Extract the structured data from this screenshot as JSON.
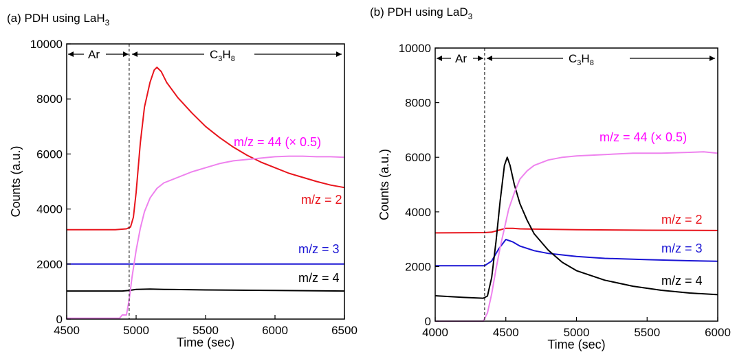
{
  "chart_data": [
    {
      "type": "line",
      "title": "(a) PDH using LaH",
      "title_sub": "3",
      "xlabel": "Time (sec)",
      "ylabel": "Counts (a.u.)",
      "xlim": [
        4500,
        6500
      ],
      "ylim": [
        0,
        10000
      ],
      "xticks": [
        4500,
        5000,
        5500,
        6000,
        6500
      ],
      "yticks": [
        0,
        2000,
        4000,
        6000,
        8000,
        10000
      ],
      "grid": false,
      "switch_x": 4950,
      "gas_labels": {
        "ar": "Ar",
        "c3h8_main": "C",
        "c3h8_sub1": "3",
        "c3h8_mid": "H",
        "c3h8_sub2": "8"
      },
      "series": [
        {
          "name": "m/z = 2",
          "color": "#e8141c",
          "x": [
            4500,
            4850,
            4930,
            4960,
            4980,
            5000,
            5030,
            5060,
            5100,
            5130,
            5150,
            5180,
            5220,
            5300,
            5400,
            5500,
            5600,
            5700,
            5800,
            5900,
            6000,
            6100,
            6200,
            6300,
            6400,
            6500
          ],
          "y": [
            3250,
            3250,
            3280,
            3350,
            3700,
            4600,
            6400,
            7700,
            8600,
            9050,
            9150,
            9000,
            8600,
            8050,
            7500,
            7000,
            6600,
            6250,
            5950,
            5700,
            5500,
            5300,
            5150,
            5000,
            4870,
            4780
          ]
        },
        {
          "name": "m/z = 3",
          "color": "#1a14d4",
          "x": [
            4500,
            6500
          ],
          "y": [
            2000,
            2000
          ]
        },
        {
          "name": "m/z = 4",
          "color": "#000000",
          "x": [
            4500,
            4900,
            4950,
            5000,
            5100,
            5200,
            5500,
            6000,
            6500
          ],
          "y": [
            1020,
            1020,
            1040,
            1080,
            1090,
            1080,
            1060,
            1040,
            1020
          ]
        },
        {
          "name": "m/z = 44 (×0.5)",
          "color": "#ee82ee",
          "x": [
            4500,
            4880,
            4900,
            4930,
            4950,
            4970,
            5000,
            5030,
            5060,
            5100,
            5150,
            5200,
            5300,
            5400,
            5500,
            5600,
            5700,
            5800,
            5900,
            6000,
            6100,
            6200,
            6300,
            6400,
            6500
          ],
          "y": [
            30,
            30,
            150,
            150,
            700,
            1500,
            2500,
            3300,
            3900,
            4400,
            4750,
            4950,
            5150,
            5350,
            5500,
            5650,
            5750,
            5800,
            5850,
            5900,
            5920,
            5920,
            5900,
            5900,
            5880
          ]
        }
      ],
      "series_labels": [
        {
          "text": "m/z = 44 (",
          "mult": "×",
          "suffix": " 0.5)",
          "color": "#ff00ff"
        },
        {
          "text": "m/z = 2",
          "color": "#e8141c"
        },
        {
          "text": "m/z = 3",
          "color": "#1a14d4"
        },
        {
          "text": "m/z = 4",
          "color": "#000000"
        }
      ]
    },
    {
      "type": "line",
      "title": "(b) PDH using LaD",
      "title_sub": "3",
      "xlabel": "Time (sec)",
      "ylabel": "Counts (a.u.)",
      "xlim": [
        4000,
        6000
      ],
      "ylim": [
        0,
        10000
      ],
      "xticks": [
        4000,
        4500,
        5000,
        5500,
        6000
      ],
      "yticks": [
        0,
        2000,
        4000,
        6000,
        8000,
        10000
      ],
      "grid": false,
      "switch_x": 4350,
      "gas_labels": {
        "ar": "Ar",
        "c3h8_main": "C",
        "c3h8_sub1": "3",
        "c3h8_mid": "H",
        "c3h8_sub2": "8"
      },
      "series": [
        {
          "name": "m/z = 2",
          "color": "#e8141c",
          "x": [
            4000,
            4350,
            4400,
            4450,
            4500,
            4550,
            4600,
            5000,
            5500,
            6000
          ],
          "y": [
            3230,
            3240,
            3260,
            3330,
            3400,
            3400,
            3380,
            3350,
            3330,
            3320
          ]
        },
        {
          "name": "m/z = 3",
          "color": "#1a14d4",
          "x": [
            4000,
            4350,
            4400,
            4450,
            4500,
            4550,
            4600,
            4700,
            4800,
            5000,
            5200,
            5500,
            5800,
            6000
          ],
          "y": [
            2030,
            2030,
            2200,
            2650,
            2990,
            2900,
            2750,
            2580,
            2480,
            2370,
            2300,
            2250,
            2210,
            2190
          ]
        },
        {
          "name": "m/z = 4",
          "color": "#000000",
          "x": [
            4000,
            4200,
            4340,
            4370,
            4400,
            4430,
            4460,
            4490,
            4510,
            4530,
            4560,
            4600,
            4650,
            4700,
            4800,
            4900,
            5000,
            5200,
            5400,
            5600,
            5800,
            6000
          ],
          "y": [
            930,
            870,
            840,
            920,
            1600,
            2900,
            4400,
            5700,
            6000,
            5700,
            5000,
            4300,
            3700,
            3200,
            2600,
            2150,
            1850,
            1500,
            1280,
            1130,
            1030,
            970
          ]
        },
        {
          "name": "m/z = 44 (×0.5)",
          "color": "#ee82ee",
          "x": [
            4000,
            4340,
            4370,
            4400,
            4430,
            4460,
            4490,
            4520,
            4560,
            4600,
            4650,
            4700,
            4800,
            4900,
            5000,
            5200,
            5400,
            5600,
            5800,
            5900,
            6000
          ],
          "y": [
            0,
            0,
            300,
            1000,
            1900,
            2700,
            3400,
            4100,
            4700,
            5200,
            5500,
            5700,
            5900,
            6000,
            6050,
            6100,
            6150,
            6150,
            6180,
            6200,
            6150
          ]
        }
      ],
      "series_labels": [
        {
          "text": "m/z = 44 (",
          "mult": "×",
          "suffix": " 0.5)",
          "color": "#ff00ff"
        },
        {
          "text": "m/z = 2",
          "color": "#e8141c"
        },
        {
          "text": "m/z = 3",
          "color": "#1a14d4"
        },
        {
          "text": "m/z = 4",
          "color": "#000000"
        }
      ]
    }
  ]
}
